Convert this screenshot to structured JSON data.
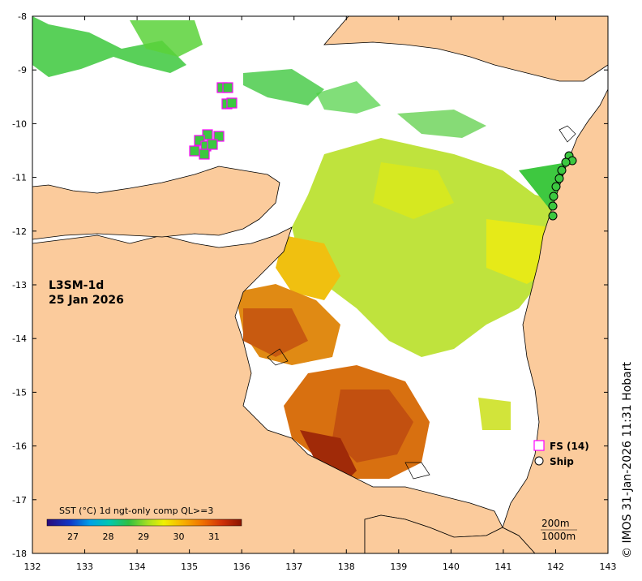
{
  "map": {
    "title_line1": "L3SM-1d",
    "title_line2": "25 Jan 2026",
    "credit": "© IMOS 31-Jan-2026 11:31 Hobart",
    "x_axis": {
      "ticks": [
        "132",
        "133",
        "134",
        "135",
        "136",
        "137",
        "138",
        "139",
        "140",
        "141",
        "142",
        "143"
      ]
    },
    "y_axis": {
      "ticks": [
        "-8",
        "-9",
        "-10",
        "-11",
        "-12",
        "-13",
        "-14",
        "-15",
        "-16",
        "-17",
        "-18"
      ]
    },
    "colorbar": {
      "title": "SST (°C) 1d ngt-only comp QL>=3",
      "ticks": [
        "27",
        "28",
        "29",
        "30",
        "31"
      ]
    },
    "legend": {
      "fs_label": "FS (14)",
      "ship_label": "Ship",
      "fs_color": "#ff00ff",
      "ship_color": "#000000"
    },
    "scale": {
      "line1": "200m",
      "line2": "1000m"
    },
    "colors": {
      "land": "#fbcb9c",
      "sea_nodata": "#ffffff",
      "sst_warm": "#a52a08",
      "sst_cool": "#2ecc40"
    }
  }
}
